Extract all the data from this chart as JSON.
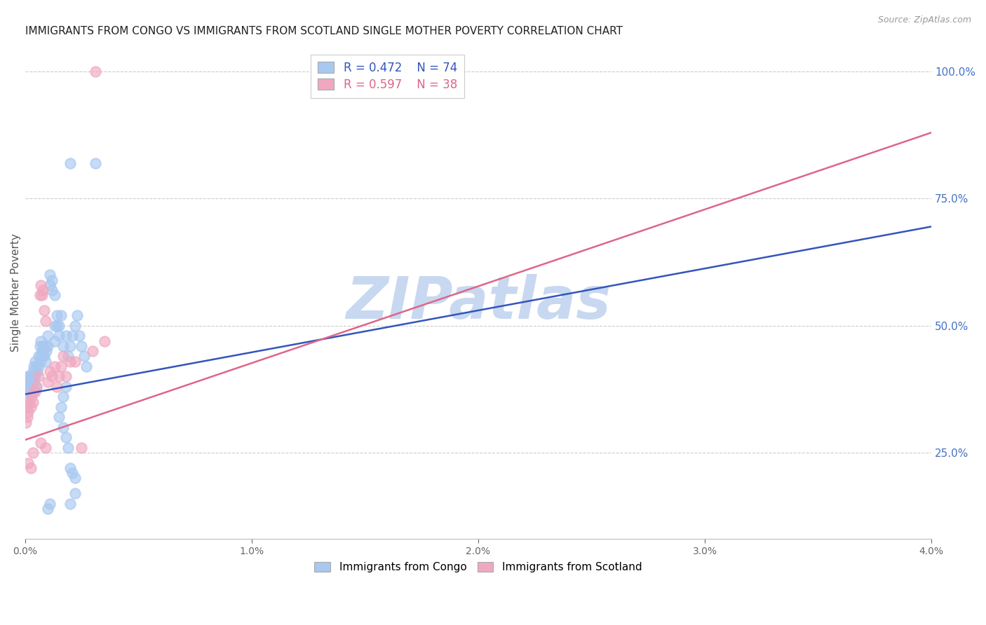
{
  "title": "IMMIGRANTS FROM CONGO VS IMMIGRANTS FROM SCOTLAND SINGLE MOTHER POVERTY CORRELATION CHART",
  "source": "Source: ZipAtlas.com",
  "ylabel": "Single Mother Poverty",
  "xlim": [
    0.0,
    0.04
  ],
  "ylim": [
    0.08,
    1.05
  ],
  "right_yticks": [
    0.25,
    0.5,
    0.75,
    1.0
  ],
  "right_ytick_labels": [
    "25.0%",
    "50.0%",
    "75.0%",
    "100.0%"
  ],
  "xtick_labels": [
    "0.0%",
    "1.0%",
    "2.0%",
    "3.0%",
    "4.0%"
  ],
  "xtick_values": [
    0.0,
    0.01,
    0.02,
    0.03,
    0.04
  ],
  "congo_R": 0.472,
  "congo_N": 74,
  "scotland_R": 0.597,
  "scotland_N": 38,
  "congo_color": "#a8c8f0",
  "scotland_color": "#f0a8c0",
  "congo_line_color": "#3355bb",
  "scotland_line_color": "#dd6688",
  "background_color": "#ffffff",
  "grid_color": "#cccccc",
  "watermark_text": "ZIPatlas",
  "watermark_color": "#c8d8f0",
  "title_fontsize": 11,
  "axis_label_fontsize": 11,
  "tick_fontsize": 10,
  "right_tick_color": "#4472c4",
  "legend_fontsize": 12,
  "congo_scatter_x": [
    5e-05,
    0.0001,
    0.0001,
    0.00015,
    0.00015,
    0.0002,
    0.0002,
    0.00025,
    0.00025,
    0.0003,
    0.0003,
    0.00035,
    0.00035,
    0.0004,
    0.0004,
    0.00045,
    0.00045,
    0.0005,
    0.0005,
    0.00055,
    0.0006,
    0.0006,
    0.00065,
    0.00065,
    0.0007,
    0.0007,
    0.00075,
    0.0008,
    0.0008,
    0.00085,
    0.0009,
    0.0009,
    0.00095,
    0.001,
    0.001,
    0.0011,
    0.0011,
    0.0012,
    0.0012,
    0.0013,
    0.0013,
    0.0014,
    0.0015,
    0.0015,
    0.0016,
    0.0017,
    0.0018,
    0.0019,
    0.002,
    0.0021,
    0.0022,
    0.0023,
    0.0024,
    0.0025,
    0.0026,
    0.0027,
    0.0015,
    0.0016,
    0.0017,
    0.0018,
    0.0019,
    0.002,
    0.0021,
    0.0022,
    0.0017,
    0.0018,
    0.0013,
    0.0014,
    0.002,
    0.0031,
    0.002,
    0.0022,
    0.001,
    0.0011
  ],
  "congo_scatter_y": [
    0.37,
    0.38,
    0.4,
    0.36,
    0.39,
    0.38,
    0.4,
    0.37,
    0.4,
    0.38,
    0.39,
    0.41,
    0.4,
    0.39,
    0.42,
    0.4,
    0.43,
    0.38,
    0.42,
    0.41,
    0.42,
    0.44,
    0.43,
    0.46,
    0.44,
    0.47,
    0.45,
    0.44,
    0.46,
    0.44,
    0.43,
    0.46,
    0.45,
    0.46,
    0.48,
    0.58,
    0.6,
    0.57,
    0.59,
    0.56,
    0.47,
    0.5,
    0.48,
    0.5,
    0.52,
    0.46,
    0.48,
    0.44,
    0.46,
    0.48,
    0.5,
    0.52,
    0.48,
    0.46,
    0.44,
    0.42,
    0.32,
    0.34,
    0.3,
    0.28,
    0.26,
    0.22,
    0.21,
    0.2,
    0.36,
    0.38,
    0.5,
    0.52,
    0.82,
    0.82,
    0.15,
    0.17,
    0.14,
    0.15
  ],
  "scotland_scatter_x": [
    5e-05,
    0.0001,
    0.0001,
    0.00015,
    0.0002,
    0.00025,
    0.0003,
    0.00035,
    0.0004,
    0.00045,
    0.0005,
    0.0006,
    0.00065,
    0.0007,
    0.00075,
    0.0008,
    0.00085,
    0.0009,
    0.001,
    0.0011,
    0.0012,
    0.0013,
    0.0014,
    0.0015,
    0.0016,
    0.0017,
    0.0018,
    0.002,
    0.0022,
    0.003,
    0.0035,
    0.00015,
    0.00025,
    0.00035,
    0.0007,
    0.0009,
    0.0025,
    0.0031
  ],
  "scotland_scatter_y": [
    0.31,
    0.32,
    0.34,
    0.33,
    0.35,
    0.34,
    0.36,
    0.35,
    0.37,
    0.37,
    0.38,
    0.4,
    0.56,
    0.58,
    0.56,
    0.57,
    0.53,
    0.51,
    0.39,
    0.41,
    0.4,
    0.42,
    0.38,
    0.4,
    0.42,
    0.44,
    0.4,
    0.43,
    0.43,
    0.45,
    0.47,
    0.23,
    0.22,
    0.25,
    0.27,
    0.26,
    0.26,
    1.0
  ],
  "congo_trend_x": [
    0.0,
    0.04
  ],
  "congo_trend_y": [
    0.365,
    0.695
  ],
  "scotland_trend_x": [
    0.0,
    0.04
  ],
  "scotland_trend_y": [
    0.275,
    0.88
  ]
}
